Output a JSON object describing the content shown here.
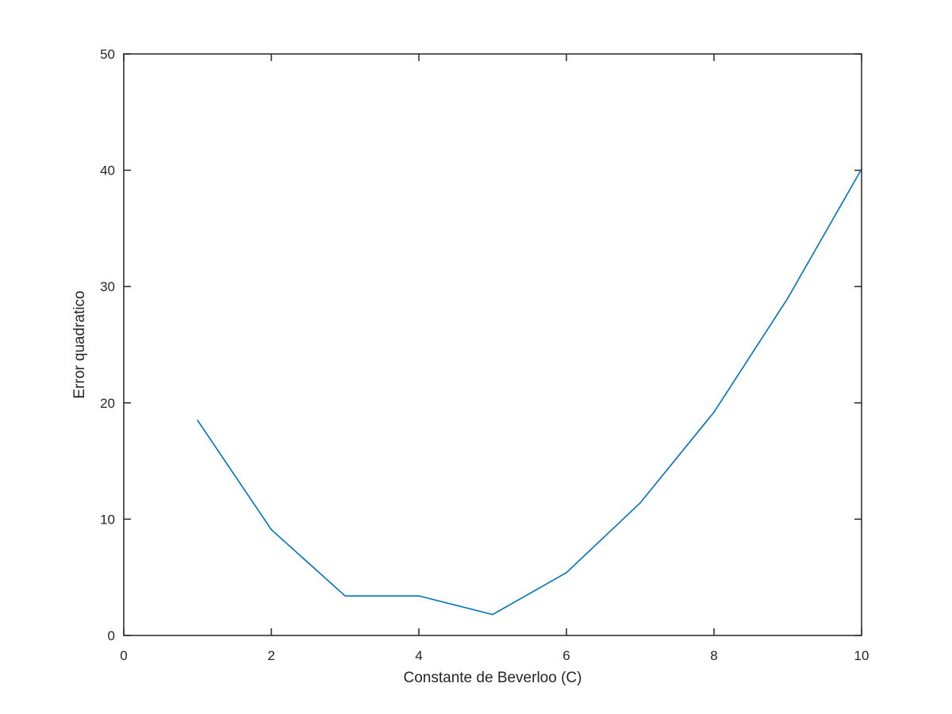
{
  "chart_data": {
    "type": "line",
    "xlabel": "Constante de Beverloo (C)",
    "ylabel": "Error quadratico",
    "xlim": [
      0,
      10
    ],
    "ylim": [
      0,
      50
    ],
    "x_ticks": [
      0,
      2,
      4,
      6,
      8,
      10
    ],
    "y_ticks": [
      0,
      10,
      20,
      30,
      40,
      50
    ],
    "grid": false,
    "box": true,
    "series": [
      {
        "color": "#0072bd",
        "x": [
          1,
          2,
          3,
          4,
          5,
          6,
          7,
          8,
          9,
          10
        ],
        "y": [
          18.5,
          9.1,
          3.4,
          3.4,
          1.8,
          5.4,
          11.4,
          19.2,
          29.0,
          40.1
        ]
      }
    ]
  }
}
